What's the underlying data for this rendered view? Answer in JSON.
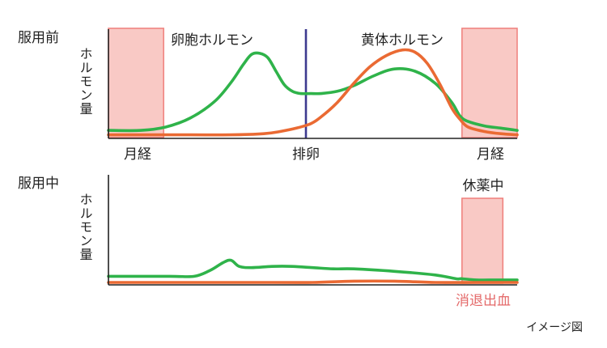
{
  "note": "イメージ図",
  "colors": {
    "estrogen": "#2fb34a",
    "progesterone": "#ea6a33",
    "ovulation_line": "#3d3a8f",
    "bleed_fill": "#f9c9c5",
    "bleed_stroke": "#ef7f7b",
    "bleed_text": "#e46a6a"
  },
  "chart_data": [
    {
      "type": "line",
      "panel_label": "服用前",
      "ylabel": "ホルモン量",
      "xlim": [
        0,
        100
      ],
      "ylim": [
        0,
        100
      ],
      "x_ticks": [
        {
          "x": 9.5,
          "label": "月経"
        },
        {
          "x": 49.5,
          "label": "排卵"
        },
        {
          "x": 92.5,
          "label": "月経"
        }
      ],
      "ovulation_x": 49.5,
      "shaded_regions": [
        [
          0,
          13.5
        ],
        [
          86.5,
          100
        ]
      ],
      "series": [
        {
          "name": "卵胞ホルモン",
          "color_key": "estrogen",
          "x": [
            0,
            8,
            14,
            20,
            26,
            30,
            33,
            35,
            37,
            39,
            41,
            43,
            45,
            47,
            49.5,
            52,
            56,
            60,
            65,
            70,
            75,
            80,
            84,
            86,
            88,
            92,
            96,
            100
          ],
          "y": [
            5,
            5,
            8,
            16,
            31,
            48,
            64,
            73,
            74,
            70,
            58,
            46,
            40,
            38,
            38,
            38,
            40,
            45,
            54,
            60,
            58,
            47,
            30,
            18,
            13,
            9,
            7,
            5
          ]
        },
        {
          "name": "黄体ホルモン",
          "color_key": "progesterone",
          "x": [
            0,
            20,
            30,
            38,
            42,
            46,
            49.5,
            52,
            56,
            60,
            64,
            68,
            72,
            75,
            78,
            81,
            84,
            86,
            88,
            92,
            96,
            100
          ],
          "y": [
            1,
            1,
            1,
            2,
            4,
            7,
            11,
            17,
            30,
            47,
            62,
            72,
            77,
            75,
            65,
            47,
            25,
            15,
            8,
            4,
            2,
            1
          ]
        }
      ]
    },
    {
      "type": "line",
      "panel_label": "服用中",
      "ylabel": "ホルモン量",
      "xlim": [
        0,
        100
      ],
      "ylim": [
        0,
        100
      ],
      "shaded_regions": [
        [
          86.5,
          96.5
        ]
      ],
      "shaded_label_top": "休薬中",
      "shaded_label_bottom": "消退出血",
      "series": [
        {
          "name": "卵胞ホルモン",
          "color_key": "estrogen",
          "x": [
            0,
            15,
            21,
            25,
            28,
            30,
            32,
            35,
            40,
            45,
            50,
            55,
            60,
            70,
            80,
            85,
            86.5,
            90,
            95,
            100
          ],
          "y": [
            7,
            7,
            7,
            12,
            18,
            20,
            15,
            14,
            15,
            15,
            14,
            13,
            13,
            11,
            8,
            5,
            5,
            4,
            4,
            4
          ]
        },
        {
          "name": "黄体ホルモン",
          "color_key": "progesterone",
          "x": [
            0,
            40,
            50,
            60,
            70,
            80,
            90,
            100
          ],
          "y": [
            2,
            2,
            2,
            3,
            3,
            2,
            2,
            2
          ]
        }
      ]
    }
  ]
}
